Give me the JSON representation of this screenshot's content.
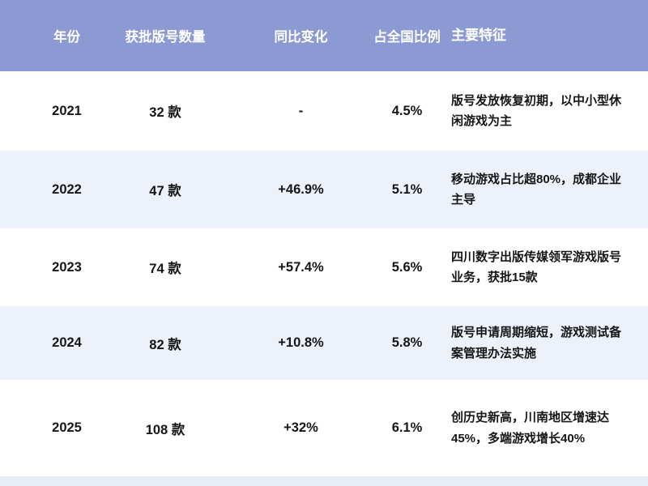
{
  "colors": {
    "header_bg": "#8B9AD2",
    "header_text": "#FFFFFF",
    "row_alt_bg": "#EDF1F9",
    "footer_strip_bg": "#E8ECF4",
    "body_text": "#161616"
  },
  "table": {
    "columns": [
      {
        "key": "year",
        "label": "年份"
      },
      {
        "key": "count",
        "label": "获批版号数量"
      },
      {
        "key": "yoy",
        "label": "同比变化"
      },
      {
        "key": "share",
        "label": "占全国比例"
      },
      {
        "key": "features",
        "label": "主要特征"
      }
    ],
    "rows": [
      {
        "year": "2021",
        "count": "32 款",
        "yoy": "-",
        "share": "4.5%",
        "features": "版号发放恢复初期，以中小型休闲游戏为主"
      },
      {
        "year": "2022",
        "count": "47 款",
        "yoy": "+46.9%",
        "share": "5.1%",
        "features": "移动游戏占比超80%，成都企业主导"
      },
      {
        "year": "2023",
        "count": "74 款",
        "yoy": "+57.4%",
        "share": "5.6%",
        "features": "四川数字出版传媒领军游戏版号业务，获批15款"
      },
      {
        "year": "2024",
        "count": "82 款",
        "yoy": "+10.8%",
        "share": "5.8%",
        "features": "版号申请周期缩短，游戏测试备案管理办法实施"
      },
      {
        "year": "2025",
        "count": "108 款",
        "yoy": "+32%",
        "share": "6.1%",
        "features": "创历史新高，川南地区增速达45%，多端游戏增长40%"
      }
    ]
  }
}
